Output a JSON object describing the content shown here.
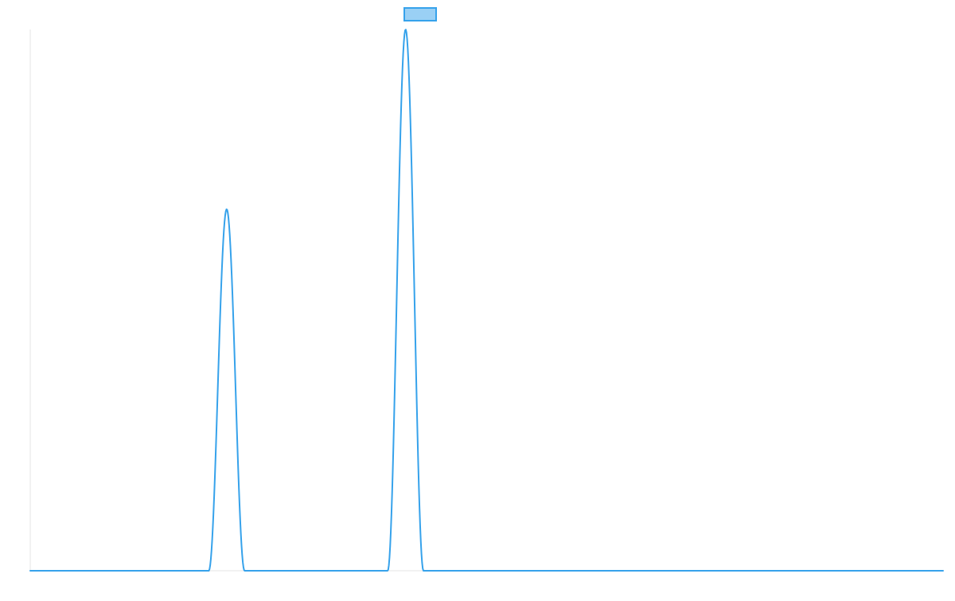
{
  "chart_data": {
    "type": "line",
    "title": "",
    "xlabel": "",
    "ylabel": "",
    "xlim": [
      0,
      1
    ],
    "ylim": [
      0,
      1
    ],
    "legend": "top-center",
    "grid": false,
    "series": [
      {
        "name": "",
        "color": "#36a2eb",
        "fill_color": "#9ad0f5",
        "peaks": [
          {
            "center": 0.2152,
            "half_width": 0.0196,
            "height": 0.668
          },
          {
            "center": 0.4112,
            "half_width": 0.0196,
            "height": 1.0
          }
        ]
      }
    ]
  }
}
